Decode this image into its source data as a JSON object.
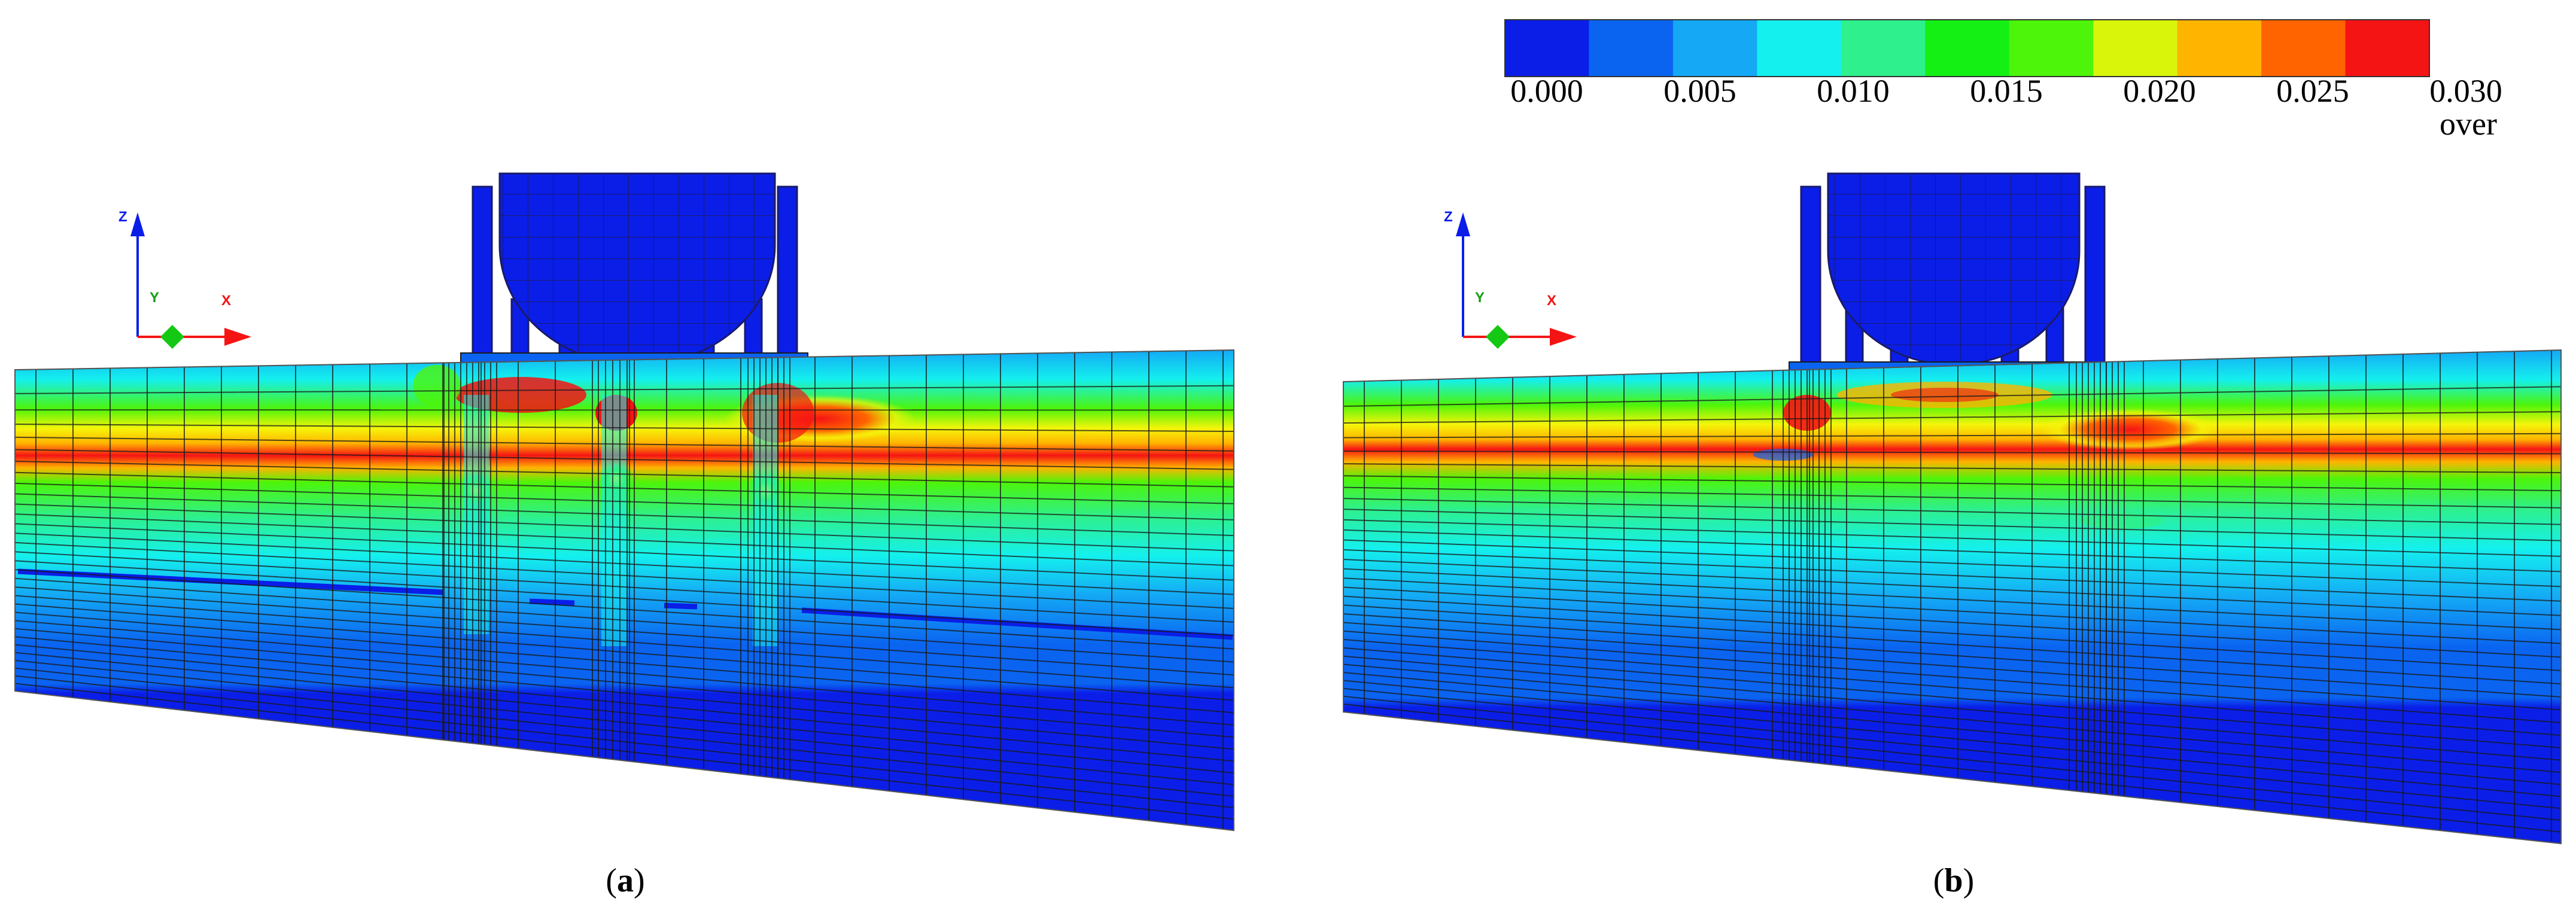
{
  "colorbar": {
    "colors": [
      "#0a1ee8",
      "#0a64f0",
      "#14a8f5",
      "#14f0ee",
      "#2ef08c",
      "#14f014",
      "#4cf50a",
      "#d8f50a",
      "#ffb400",
      "#ff6400",
      "#f51414"
    ],
    "tick_labels": [
      "0.000",
      "0.005",
      "0.010",
      "0.015",
      "0.020",
      "0.025",
      "0.030"
    ],
    "overflow_label": "over"
  },
  "panels": [
    {
      "caption_open": "(",
      "caption_letter": "a",
      "caption_close": ")"
    },
    {
      "caption_open": "(",
      "caption_letter": "b",
      "caption_close": ")"
    }
  ],
  "axes_triad": {
    "z": "Z",
    "y": "Y",
    "x": "X"
  },
  "colors": {
    "mesh_line": "#1a1a1a",
    "deep": "#0a1ee8",
    "mid": "#0a64f0",
    "cyan": "#14f0ee",
    "green": "#14f014",
    "yellow": "#f5f50a",
    "red": "#f51414"
  }
}
